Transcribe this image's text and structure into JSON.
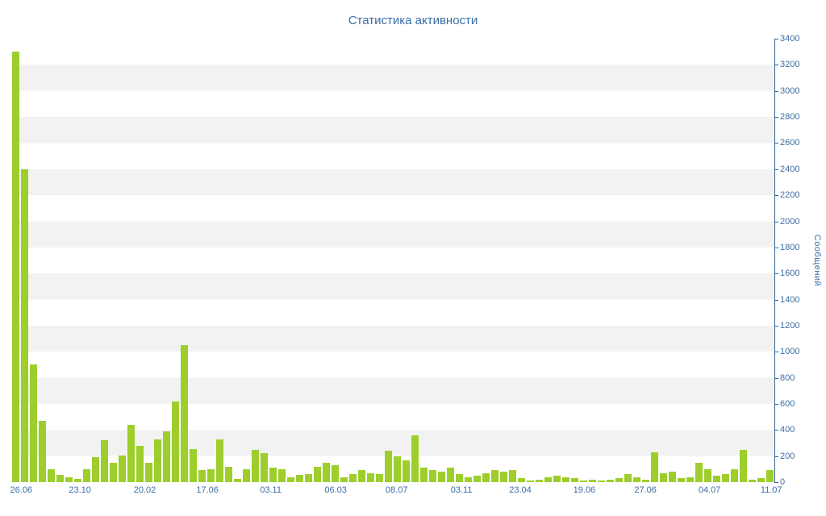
{
  "page": {
    "title": "Статистика активности"
  },
  "colors": {
    "bar": "#9dce2c",
    "axis": "#336699",
    "text": "#3a6ea5",
    "title": "#3a6ea5",
    "band": "#f2f2f2"
  },
  "chart_data": {
    "type": "bar",
    "title": "Статистика активности",
    "xlabel": "",
    "ylabel": "Сообщений",
    "ylim": [
      0,
      3400
    ],
    "ytick_step": 200,
    "yticks": [
      0,
      200,
      400,
      600,
      800,
      1000,
      1200,
      1400,
      1600,
      1800,
      2000,
      2200,
      2400,
      2600,
      2800,
      3000,
      3200,
      3400
    ],
    "grid": "horizontal-bands",
    "legend": "none",
    "values": [
      3300,
      2400,
      900,
      470,
      100,
      55,
      35,
      25,
      100,
      190,
      320,
      150,
      205,
      440,
      280,
      150,
      330,
      390,
      620,
      1050,
      255,
      90,
      100,
      330,
      120,
      25,
      100,
      250,
      220,
      110,
      100,
      40,
      55,
      60,
      120,
      150,
      130,
      40,
      60,
      90,
      70,
      60,
      240,
      200,
      170,
      360,
      110,
      90,
      80,
      110,
      60,
      40,
      50,
      70,
      90,
      80,
      90,
      30,
      10,
      20,
      40,
      50,
      40,
      30,
      10,
      20,
      10,
      20,
      30,
      60,
      40,
      20,
      230,
      70,
      80,
      30,
      40,
      150,
      100,
      50,
      60,
      100,
      250,
      20,
      30,
      90
    ],
    "x_labels": [
      {
        "label": "26.06",
        "pos": 0.013
      },
      {
        "label": "23.10",
        "pos": 0.09
      },
      {
        "label": "20.02",
        "pos": 0.175
      },
      {
        "label": "17.06",
        "pos": 0.257
      },
      {
        "label": "03.11",
        "pos": 0.34
      },
      {
        "label": "06.03",
        "pos": 0.425
      },
      {
        "label": "08.07",
        "pos": 0.505
      },
      {
        "label": "03.11",
        "pos": 0.59
      },
      {
        "label": "23.04",
        "pos": 0.667
      },
      {
        "label": "19.06",
        "pos": 0.751
      },
      {
        "label": "27.06",
        "pos": 0.831
      },
      {
        "label": "04.07",
        "pos": 0.915
      },
      {
        "label": "11.07",
        "pos": 0.996
      }
    ]
  }
}
